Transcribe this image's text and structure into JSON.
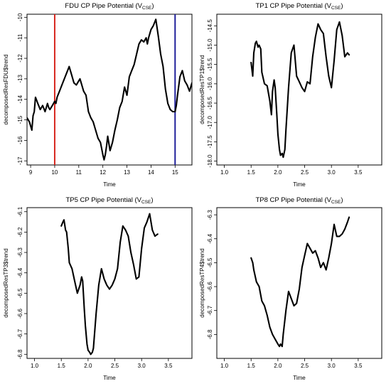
{
  "chart_data": [
    {
      "type": "line",
      "title_main": "FDU CP Pipe Potential (V",
      "title_sub": "CSE",
      "title_close": ")",
      "xlabel": "Time",
      "ylabel": "decomposedResFDU$trend",
      "xlim": [
        8.85,
        15.7
      ],
      "ylim": [
        -17.2,
        -9.85
      ],
      "xticks": [
        9,
        10,
        11,
        12,
        13,
        14,
        15
      ],
      "yticks": [
        -17,
        -16,
        -15,
        -14,
        -13,
        -12,
        -11,
        -10
      ],
      "vlines": [
        {
          "x": 10.0,
          "color": "#d7261e"
        },
        {
          "x": 15.0,
          "color": "#1f1f9a"
        }
      ],
      "series": [
        {
          "x": [
            8.85,
            8.95,
            9.05,
            9.1,
            9.15,
            9.2,
            9.3,
            9.4,
            9.5,
            9.6,
            9.7,
            9.75,
            9.8,
            9.9,
            10.0,
            10.05,
            10.1,
            10.2,
            10.3,
            10.4,
            10.5,
            10.6,
            10.7,
            10.8,
            10.9,
            11.0,
            11.05,
            11.1,
            11.2,
            11.3,
            11.4,
            11.5,
            11.6,
            11.7,
            11.8,
            11.9,
            12.0,
            12.05,
            12.1,
            12.15,
            12.2,
            12.3,
            12.4,
            12.5,
            12.6,
            12.7,
            12.8,
            12.9,
            13.0,
            13.1,
            13.2,
            13.3,
            13.4,
            13.5,
            13.6,
            13.7,
            13.8,
            13.85,
            13.9,
            14.0,
            14.1,
            14.2,
            14.3,
            14.4,
            14.5,
            14.6,
            14.7,
            14.8,
            14.9,
            15.0,
            15.05,
            15.1,
            15.2,
            15.3,
            15.4,
            15.5,
            15.6,
            15.7
          ],
          "y": [
            -14.9,
            -15.1,
            -15.5,
            -14.8,
            -14.6,
            -13.9,
            -14.2,
            -14.5,
            -14.3,
            -14.6,
            -14.2,
            -14.4,
            -14.5,
            -14.3,
            -14.1,
            -14.2,
            -13.9,
            -13.6,
            -13.3,
            -13.0,
            -12.7,
            -12.4,
            -12.8,
            -13.2,
            -13.3,
            -13.1,
            -13.0,
            -13.2,
            -13.6,
            -13.8,
            -14.6,
            -14.9,
            -15.1,
            -15.5,
            -15.9,
            -16.1,
            -16.7,
            -16.95,
            -16.7,
            -16.3,
            -15.8,
            -16.5,
            -16.1,
            -15.5,
            -15.0,
            -14.4,
            -14.1,
            -13.4,
            -13.8,
            -12.9,
            -12.6,
            -12.3,
            -11.8,
            -11.3,
            -11.1,
            -11.2,
            -11.0,
            -11.3,
            -11.0,
            -10.6,
            -10.4,
            -10.1,
            -10.9,
            -11.8,
            -12.4,
            -13.5,
            -14.2,
            -14.5,
            -14.6,
            -14.6,
            -14.3,
            -13.8,
            -12.9,
            -12.6,
            -13.1,
            -13.3,
            -13.6,
            -13.2
          ]
        }
      ]
    },
    {
      "type": "line",
      "title_main": "TP1 CP Pipe Potential (V",
      "title_sub": "CSE",
      "title_close": ")",
      "xlabel": "Time",
      "ylabel": "decomposedResTP1$trend",
      "xlim": [
        0.86,
        3.94
      ],
      "ylim": [
        -18.1,
        -14.2
      ],
      "xticks": [
        1.0,
        1.5,
        2.0,
        2.5,
        3.0,
        3.5
      ],
      "xtick_labels": [
        "1.0",
        "1.5",
        "2.0",
        "2.5",
        "3.0",
        "3.5"
      ],
      "yticks": [
        -18.0,
        -17.5,
        -17.0,
        -16.5,
        -16.0,
        -15.5,
        -15.0,
        -14.5
      ],
      "ytick_labels": [
        "-18.0",
        "-17.5",
        "-17.0",
        "-16.5",
        "-16.0",
        "-15.5",
        "-15.0",
        "-14.5"
      ],
      "series": [
        {
          "x": [
            1.5,
            1.53,
            1.55,
            1.58,
            1.6,
            1.63,
            1.65,
            1.68,
            1.7,
            1.75,
            1.8,
            1.85,
            1.88,
            1.9,
            1.93,
            1.95,
            1.98,
            2.0,
            2.03,
            2.05,
            2.08,
            2.1,
            2.13,
            2.15,
            2.2,
            2.25,
            2.3,
            2.35,
            2.4,
            2.45,
            2.5,
            2.55,
            2.6,
            2.65,
            2.7,
            2.75,
            2.8,
            2.85,
            2.9,
            2.95,
            3.0,
            3.05,
            3.1,
            3.15,
            3.2,
            3.25,
            3.3,
            3.33
          ],
          "y": [
            -15.45,
            -15.8,
            -15.2,
            -14.95,
            -14.9,
            -15.05,
            -15.0,
            -15.1,
            -15.7,
            -16.0,
            -16.05,
            -16.45,
            -16.8,
            -16.2,
            -15.9,
            -16.1,
            -16.8,
            -17.3,
            -17.7,
            -17.85,
            -17.8,
            -17.9,
            -17.7,
            -17.2,
            -16.1,
            -15.2,
            -15.0,
            -15.8,
            -15.95,
            -16.1,
            -16.2,
            -15.95,
            -16.0,
            -15.3,
            -14.8,
            -14.45,
            -14.6,
            -14.7,
            -15.3,
            -15.8,
            -16.1,
            -15.4,
            -14.6,
            -14.4,
            -14.75,
            -15.3,
            -15.2,
            -15.25
          ]
        }
      ]
    },
    {
      "type": "line",
      "title_main": "TP5 CP Pipe Potential (V",
      "title_sub": "CSE",
      "title_close": ")",
      "xlabel": "Time",
      "ylabel": "decomposedResTP3$trend",
      "xlim": [
        0.86,
        3.94
      ],
      "ylim": [
        -6.82,
        -6.08
      ],
      "xticks": [
        1.0,
        1.5,
        2.0,
        2.5,
        3.0,
        3.5
      ],
      "xtick_labels": [
        "1.0",
        "1.5",
        "2.0",
        "2.5",
        "3.0",
        "3.5"
      ],
      "yticks": [
        -6.8,
        -6.7,
        -6.6,
        -6.5,
        -6.4,
        -6.3,
        -6.2,
        -6.1
      ],
      "ytick_labels": [
        "-6.8",
        "-6.7",
        "-6.6",
        "-6.5",
        "-6.4",
        "-6.3",
        "-6.2",
        "-6.1"
      ],
      "series": [
        {
          "x": [
            1.5,
            1.53,
            1.55,
            1.58,
            1.6,
            1.63,
            1.65,
            1.7,
            1.75,
            1.8,
            1.85,
            1.88,
            1.9,
            1.93,
            1.95,
            1.98,
            2.0,
            2.03,
            2.05,
            2.08,
            2.1,
            2.15,
            2.2,
            2.25,
            2.3,
            2.35,
            2.4,
            2.45,
            2.5,
            2.55,
            2.6,
            2.65,
            2.7,
            2.75,
            2.8,
            2.85,
            2.9,
            2.95,
            3.0,
            3.05,
            3.1,
            3.15,
            3.2,
            3.25,
            3.3
          ],
          "y": [
            -6.17,
            -6.15,
            -6.14,
            -6.19,
            -6.2,
            -6.28,
            -6.35,
            -6.38,
            -6.44,
            -6.5,
            -6.46,
            -6.42,
            -6.44,
            -6.58,
            -6.66,
            -6.75,
            -6.78,
            -6.79,
            -6.8,
            -6.79,
            -6.77,
            -6.6,
            -6.46,
            -6.38,
            -6.43,
            -6.46,
            -6.48,
            -6.46,
            -6.43,
            -6.38,
            -6.25,
            -6.17,
            -6.19,
            -6.22,
            -6.3,
            -6.36,
            -6.43,
            -6.42,
            -6.28,
            -6.18,
            -6.15,
            -6.11,
            -6.19,
            -6.22,
            -6.21
          ]
        }
      ]
    },
    {
      "type": "line",
      "title_main": "TP8 CP Pipe Potential (V",
      "title_sub": "CSE",
      "title_close": ")",
      "xlabel": "Time",
      "ylabel": "decomposedResTP4$trend",
      "xlim": [
        0.86,
        3.94
      ],
      "ylim": [
        -6.9,
        -6.27
      ],
      "xticks": [
        1.0,
        1.5,
        2.0,
        2.5,
        3.0,
        3.5
      ],
      "xtick_labels": [
        "1.0",
        "1.5",
        "2.0",
        "2.5",
        "3.0",
        "3.5"
      ],
      "yticks": [
        -6.8,
        -6.7,
        -6.6,
        -6.5,
        -6.4,
        -6.3
      ],
      "ytick_labels": [
        "-6.8",
        "-6.7",
        "-6.6",
        "-6.5",
        "-6.4",
        "-6.3"
      ],
      "series": [
        {
          "x": [
            1.5,
            1.53,
            1.55,
            1.6,
            1.65,
            1.7,
            1.75,
            1.8,
            1.85,
            1.9,
            1.95,
            2.0,
            2.03,
            2.05,
            2.08,
            2.1,
            2.15,
            2.2,
            2.25,
            2.3,
            2.35,
            2.4,
            2.45,
            2.5,
            2.55,
            2.6,
            2.65,
            2.7,
            2.75,
            2.8,
            2.85,
            2.9,
            2.95,
            3.0,
            3.05,
            3.1,
            3.15,
            3.2,
            3.25,
            3.3,
            3.33
          ],
          "y": [
            -6.48,
            -6.5,
            -6.53,
            -6.58,
            -6.6,
            -6.66,
            -6.68,
            -6.72,
            -6.77,
            -6.8,
            -6.82,
            -6.84,
            -6.85,
            -6.84,
            -6.85,
            -6.8,
            -6.7,
            -6.62,
            -6.65,
            -6.68,
            -6.67,
            -6.61,
            -6.52,
            -6.47,
            -6.42,
            -6.44,
            -6.46,
            -6.45,
            -6.48,
            -6.52,
            -6.5,
            -6.53,
            -6.48,
            -6.42,
            -6.34,
            -6.39,
            -6.39,
            -6.38,
            -6.36,
            -6.33,
            -6.31
          ]
        }
      ]
    }
  ]
}
